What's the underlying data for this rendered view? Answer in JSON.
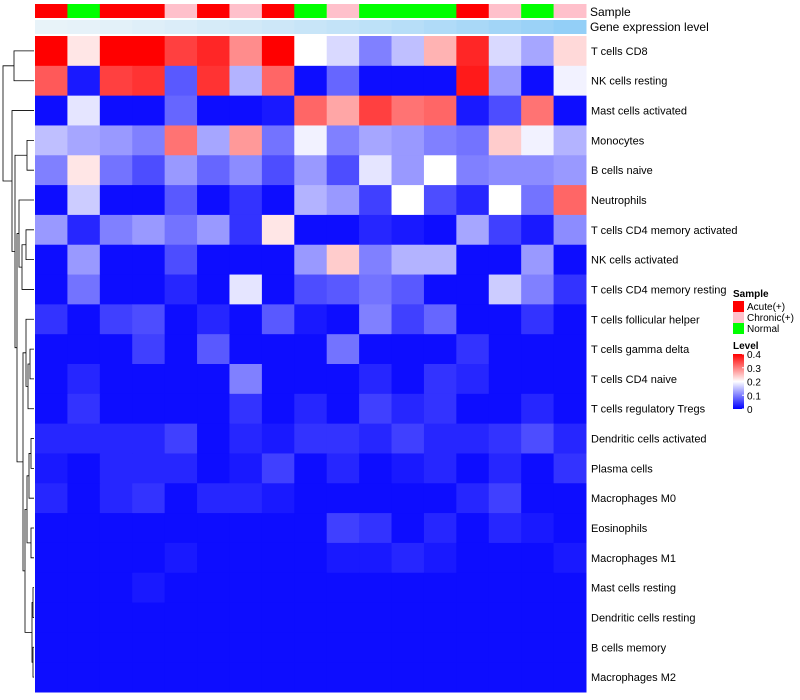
{
  "chart_data": {
    "type": "heatmap",
    "annotation_labels": {
      "sample": "Sample",
      "gene_expression": "Gene expression level"
    },
    "sample_groups": [
      "Acute(+)",
      "Normal",
      "Acute(+)",
      "Acute(+)",
      "Chronic(+)",
      "Acute(+)",
      "Chronic(+)",
      "Acute(+)",
      "Normal",
      "Chronic(+)",
      "Normal",
      "Normal",
      "Normal",
      "Acute(+)",
      "Chronic(+)",
      "Normal",
      "Chronic(+)"
    ],
    "sample_colors": {
      "Acute(+)": "#ff0000",
      "Chronic(+)": "#ffc0cb",
      "Normal": "#00ff00"
    },
    "gene_expression_colors": [
      "#e8f3f9",
      "#e6f2f9",
      "#e3f1f9",
      "#dfeff9",
      "#dbedf9",
      "#d6ebf8",
      "#d2e9f8",
      "#cde7f8",
      "#c8e5f8",
      "#c3e3f8",
      "#bde1f8",
      "#b7def8",
      "#b0dbf8",
      "#a9d8f7",
      "#a2d5f7",
      "#9bd2f7",
      "#93cff7"
    ],
    "rows": [
      "T cells CD8",
      "NK cells resting",
      "Mast cells activated",
      "Monocytes",
      "B cells naive",
      "Neutrophils",
      "T cells CD4 memory activated",
      "NK cells activated",
      "T cells CD4 memory resting",
      "T cells follicular helper",
      "T cells gamma delta",
      "T cells CD4 naive",
      "T cells regulatory  Tregs",
      "Dendritic cells activated",
      "Plasma cells",
      "Macrophages M0",
      "Eosinophils",
      "Macrophages M1",
      "Mast cells resting",
      "Dendritic cells resting",
      "B cells memory",
      "Macrophages M2"
    ],
    "values": [
      [
        0.4,
        0.22,
        0.4,
        0.4,
        0.35,
        0.37,
        0.29,
        0.4,
        0.2,
        0.17,
        0.1,
        0.15,
        0.26,
        0.37,
        0.17,
        0.13,
        0.23
      ],
      [
        0.33,
        0.02,
        0.35,
        0.36,
        0.07,
        0.36,
        0.14,
        0.32,
        0.01,
        0.08,
        0.01,
        0.01,
        0.01,
        0.38,
        0.12,
        0.01,
        0.19
      ],
      [
        0.01,
        0.18,
        0.01,
        0.01,
        0.08,
        0.01,
        0.01,
        0.02,
        0.32,
        0.27,
        0.35,
        0.31,
        0.32,
        0.02,
        0.06,
        0.31,
        0.01
      ],
      [
        0.15,
        0.13,
        0.12,
        0.1,
        0.31,
        0.13,
        0.28,
        0.09,
        0.19,
        0.1,
        0.13,
        0.12,
        0.1,
        0.09,
        0.24,
        0.19,
        0.14
      ],
      [
        0.1,
        0.22,
        0.09,
        0.06,
        0.12,
        0.08,
        0.11,
        0.06,
        0.12,
        0.06,
        0.18,
        0.12,
        0.2,
        0.1,
        0.11,
        0.11,
        0.12
      ],
      [
        0.01,
        0.16,
        0.01,
        0.01,
        0.07,
        0.01,
        0.04,
        0.01,
        0.14,
        0.12,
        0.05,
        0.2,
        0.06,
        0.03,
        0.2,
        0.09,
        0.32
      ],
      [
        0.12,
        0.03,
        0.1,
        0.12,
        0.09,
        0.12,
        0.04,
        0.22,
        0.01,
        0.01,
        0.03,
        0.02,
        0.01,
        0.13,
        0.05,
        0.02,
        0.11
      ],
      [
        0.01,
        0.12,
        0.01,
        0.01,
        0.06,
        0.01,
        0.01,
        0.01,
        0.12,
        0.24,
        0.1,
        0.14,
        0.14,
        0.01,
        0.01,
        0.12,
        0.01
      ],
      [
        0.01,
        0.09,
        0.01,
        0.01,
        0.03,
        0.01,
        0.18,
        0.01,
        0.06,
        0.07,
        0.09,
        0.07,
        0.01,
        0.01,
        0.16,
        0.1,
        0.04
      ],
      [
        0.04,
        0.01,
        0.05,
        0.06,
        0.01,
        0.03,
        0.01,
        0.07,
        0.02,
        0.01,
        0.1,
        0.05,
        0.08,
        0.01,
        0.01,
        0.04,
        0.01
      ],
      [
        0.01,
        0.01,
        0.01,
        0.05,
        0.01,
        0.07,
        0.01,
        0.01,
        0.01,
        0.09,
        0.01,
        0.01,
        0.01,
        0.04,
        0.01,
        0.01,
        0.01
      ],
      [
        0.01,
        0.03,
        0.01,
        0.01,
        0.01,
        0.01,
        0.1,
        0.01,
        0.01,
        0.01,
        0.03,
        0.01,
        0.04,
        0.03,
        0.01,
        0.01,
        0.01
      ],
      [
        0.01,
        0.04,
        0.01,
        0.01,
        0.01,
        0.01,
        0.04,
        0.01,
        0.03,
        0.01,
        0.05,
        0.03,
        0.04,
        0.01,
        0.01,
        0.03,
        0.01
      ],
      [
        0.03,
        0.03,
        0.03,
        0.03,
        0.05,
        0.01,
        0.03,
        0.02,
        0.04,
        0.04,
        0.03,
        0.05,
        0.03,
        0.03,
        0.04,
        0.06,
        0.03
      ],
      [
        0.02,
        0.01,
        0.03,
        0.03,
        0.03,
        0.01,
        0.02,
        0.05,
        0.01,
        0.03,
        0.01,
        0.02,
        0.03,
        0.01,
        0.03,
        0.01,
        0.04
      ],
      [
        0.03,
        0.01,
        0.03,
        0.04,
        0.01,
        0.03,
        0.03,
        0.02,
        0.01,
        0.01,
        0.01,
        0.01,
        0.01,
        0.03,
        0.05,
        0.01,
        0.01
      ],
      [
        0.01,
        0.01,
        0.01,
        0.01,
        0.01,
        0.01,
        0.01,
        0.01,
        0.01,
        0.05,
        0.04,
        0.01,
        0.03,
        0.01,
        0.03,
        0.02,
        0.01
      ],
      [
        0.01,
        0.01,
        0.01,
        0.01,
        0.02,
        0.01,
        0.01,
        0.01,
        0.01,
        0.02,
        0.02,
        0.03,
        0.02,
        0.01,
        0.01,
        0.01,
        0.02
      ],
      [
        0.01,
        0.01,
        0.01,
        0.02,
        0.01,
        0.01,
        0.01,
        0.01,
        0.01,
        0.01,
        0.01,
        0.01,
        0.01,
        0.01,
        0.01,
        0.01,
        0.01
      ],
      [
        0.01,
        0.01,
        0.01,
        0.01,
        0.01,
        0.01,
        0.01,
        0.01,
        0.01,
        0.01,
        0.01,
        0.01,
        0.01,
        0.01,
        0.01,
        0.01,
        0.01
      ],
      [
        0.01,
        0.01,
        0.01,
        0.01,
        0.01,
        0.01,
        0.01,
        0.01,
        0.01,
        0.01,
        0.01,
        0.01,
        0.01,
        0.01,
        0.01,
        0.01,
        0.01
      ],
      [
        0.01,
        0.01,
        0.01,
        0.01,
        0.01,
        0.01,
        0.01,
        0.01,
        0.01,
        0.01,
        0.01,
        0.01,
        0.01,
        0.01,
        0.01,
        0.01,
        0.01
      ]
    ],
    "color_scale": {
      "low": "#0000ff",
      "mid": "#ffffff",
      "high": "#ff0000",
      "domain": [
        0,
        0.2,
        0.4
      ]
    },
    "legend": {
      "sample_title": "Sample",
      "sample_entries": [
        "Acute(+)",
        "Chronic(+)",
        "Normal"
      ],
      "level_title": "Level",
      "level_ticks": [
        "0.4",
        "0.3",
        "0.2",
        "0.1",
        "0"
      ],
      "placement": "right"
    },
    "dendrogram": "row",
    "grid": false
  }
}
